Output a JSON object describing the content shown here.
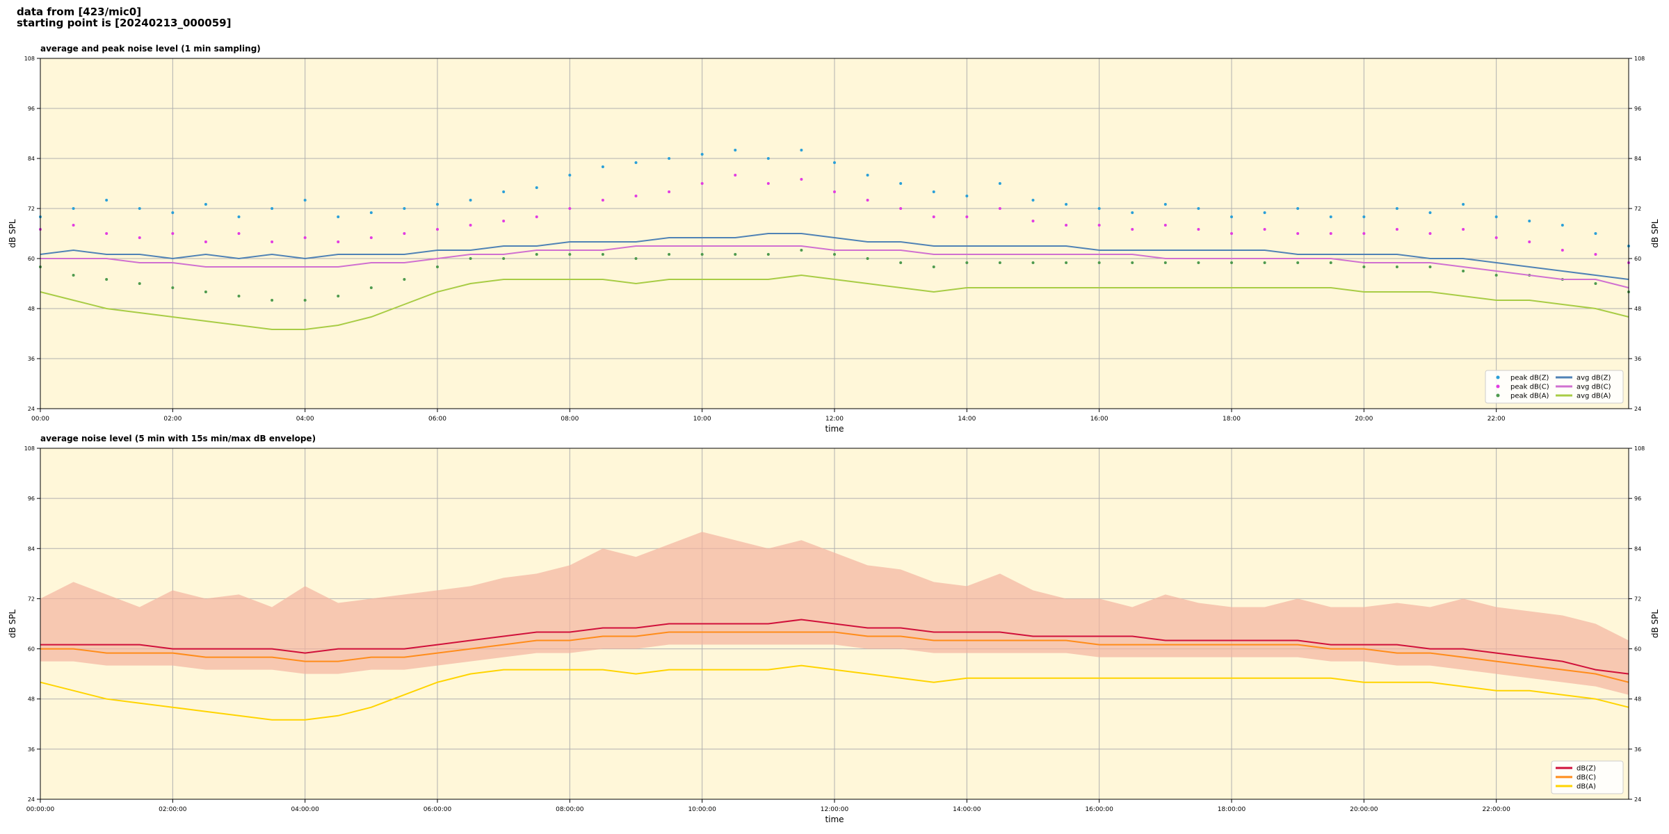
{
  "title": [
    "data from [423/mic0]",
    "starting point is [20240213_000059]"
  ],
  "chart_data": [
    {
      "type": "line",
      "title": "average and peak noise level (1 min sampling)",
      "xlabel": "time",
      "ylabel": "dB SPL",
      "background": "#fff7d9",
      "grid": true,
      "legend": "lower right",
      "legend_columns": 2,
      "xlim": [
        0,
        24
      ],
      "ylim": [
        24,
        108
      ],
      "xticks": [
        {
          "value": 0,
          "label": "00:00"
        },
        {
          "value": 2,
          "label": "02:00"
        },
        {
          "value": 4,
          "label": "04:00"
        },
        {
          "value": 6,
          "label": "06:00"
        },
        {
          "value": 8,
          "label": "08:00"
        },
        {
          "value": 10,
          "label": "10:00"
        },
        {
          "value": 12,
          "label": "12:00"
        },
        {
          "value": 14,
          "label": "14:00"
        },
        {
          "value": 16,
          "label": "16:00"
        },
        {
          "value": 18,
          "label": "18:00"
        },
        {
          "value": 20,
          "label": "20:00"
        },
        {
          "value": 22,
          "label": "22:00"
        }
      ],
      "yticks": [
        24,
        36,
        48,
        60,
        72,
        84,
        96,
        108
      ],
      "x": [
        0,
        0.5,
        1,
        1.5,
        2,
        2.5,
        3,
        3.5,
        4,
        4.5,
        5,
        5.5,
        6,
        6.5,
        7,
        7.5,
        8,
        8.5,
        9,
        9.5,
        10,
        10.5,
        11,
        11.5,
        12,
        12.5,
        13,
        13.5,
        14,
        14.5,
        15,
        15.5,
        16,
        16.5,
        17,
        17.5,
        18,
        18.5,
        19,
        19.5,
        20,
        20.5,
        21,
        21.5,
        22,
        22.5,
        23,
        23.5,
        24
      ],
      "series": [
        {
          "name": "peak dB(Z)",
          "kind": "scatter",
          "color": "#2a9fd8",
          "values": [
            70,
            72,
            74,
            72,
            71,
            73,
            70,
            72,
            74,
            70,
            71,
            72,
            73,
            74,
            76,
            77,
            80,
            82,
            83,
            84,
            85,
            86,
            84,
            86,
            83,
            80,
            78,
            76,
            75,
            78,
            74,
            73,
            72,
            71,
            73,
            72,
            70,
            71,
            72,
            70,
            70,
            72,
            71,
            73,
            70,
            69,
            68,
            66,
            63
          ]
        },
        {
          "name": "peak dB(C)",
          "kind": "scatter",
          "color": "#e23be2",
          "values": [
            67,
            68,
            66,
            65,
            66,
            64,
            66,
            64,
            65,
            64,
            65,
            66,
            67,
            68,
            69,
            70,
            72,
            74,
            75,
            76,
            78,
            80,
            78,
            79,
            76,
            74,
            72,
            70,
            70,
            72,
            69,
            68,
            68,
            67,
            68,
            67,
            66,
            67,
            66,
            66,
            66,
            67,
            66,
            67,
            65,
            64,
            62,
            61,
            59
          ]
        },
        {
          "name": "peak dB(A)",
          "kind": "scatter",
          "color": "#4e9a4e",
          "values": [
            58,
            56,
            55,
            54,
            53,
            52,
            51,
            50,
            50,
            51,
            53,
            55,
            58,
            60,
            60,
            61,
            61,
            61,
            60,
            61,
            61,
            61,
            61,
            62,
            61,
            60,
            59,
            58,
            59,
            59,
            59,
            59,
            59,
            59,
            59,
            59,
            59,
            59,
            59,
            59,
            58,
            58,
            58,
            57,
            56,
            56,
            55,
            54,
            52
          ]
        },
        {
          "name": "avg dB(Z)",
          "kind": "line",
          "color": "#4f82b5",
          "values": [
            61,
            62,
            61,
            61,
            60,
            61,
            60,
            61,
            60,
            61,
            61,
            61,
            62,
            62,
            63,
            63,
            64,
            64,
            64,
            65,
            65,
            65,
            66,
            66,
            65,
            64,
            64,
            63,
            63,
            63,
            63,
            63,
            62,
            62,
            62,
            62,
            62,
            62,
            61,
            61,
            61,
            61,
            60,
            60,
            59,
            58,
            57,
            56,
            55
          ]
        },
        {
          "name": "avg dB(C)",
          "kind": "line",
          "color": "#d070d0",
          "values": [
            60,
            60,
            60,
            59,
            59,
            58,
            58,
            58,
            58,
            58,
            59,
            59,
            60,
            61,
            61,
            62,
            62,
            62,
            63,
            63,
            63,
            63,
            63,
            63,
            62,
            62,
            62,
            61,
            61,
            61,
            61,
            61,
            61,
            61,
            60,
            60,
            60,
            60,
            60,
            60,
            59,
            59,
            59,
            58,
            57,
            56,
            55,
            55,
            53
          ]
        },
        {
          "name": "avg dB(A)",
          "kind": "line",
          "color": "#a8cc45",
          "values": [
            52,
            50,
            48,
            47,
            46,
            45,
            44,
            43,
            43,
            44,
            46,
            49,
            52,
            54,
            55,
            55,
            55,
            55,
            54,
            55,
            55,
            55,
            55,
            56,
            55,
            54,
            53,
            52,
            53,
            53,
            53,
            53,
            53,
            53,
            53,
            53,
            53,
            53,
            53,
            53,
            52,
            52,
            52,
            51,
            50,
            50,
            49,
            48,
            46
          ]
        }
      ]
    },
    {
      "type": "line",
      "title": "average noise level (5 min with 15s min/max dB envelope)",
      "xlabel": "time",
      "ylabel": "dB SPL",
      "background": "#fff7d9",
      "grid": true,
      "legend": "lower right",
      "legend_columns": 1,
      "xlim": [
        0,
        24
      ],
      "ylim": [
        24,
        108
      ],
      "xticks": [
        {
          "value": 0,
          "label": "00:00:00"
        },
        {
          "value": 2,
          "label": "02:00:00"
        },
        {
          "value": 4,
          "label": "04:00:00"
        },
        {
          "value": 6,
          "label": "06:00:00"
        },
        {
          "value": 8,
          "label": "08:00:00"
        },
        {
          "value": 10,
          "label": "10:00:00"
        },
        {
          "value": 12,
          "label": "12:00:00"
        },
        {
          "value": 14,
          "label": "14:00:00"
        },
        {
          "value": 16,
          "label": "16:00:00"
        },
        {
          "value": 18,
          "label": "18:00:00"
        },
        {
          "value": 20,
          "label": "20:00:00"
        },
        {
          "value": 22,
          "label": "22:00:00"
        }
      ],
      "yticks": [
        24,
        36,
        48,
        60,
        72,
        84,
        96,
        108
      ],
      "x": [
        0,
        0.5,
        1,
        1.5,
        2,
        2.5,
        3,
        3.5,
        4,
        4.5,
        5,
        5.5,
        6,
        6.5,
        7,
        7.5,
        8,
        8.5,
        9,
        9.5,
        10,
        10.5,
        11,
        11.5,
        12,
        12.5,
        13,
        13.5,
        14,
        14.5,
        15,
        15.5,
        16,
        16.5,
        17,
        17.5,
        18,
        18.5,
        19,
        19.5,
        20,
        20.5,
        21,
        21.5,
        22,
        22.5,
        23,
        23.5,
        24
      ],
      "envelope": {
        "color": "#f4b3a0",
        "min": [
          57,
          57,
          56,
          56,
          56,
          55,
          55,
          55,
          54,
          54,
          55,
          55,
          56,
          57,
          58,
          59,
          59,
          60,
          60,
          61,
          61,
          61,
          61,
          61,
          61,
          60,
          60,
          59,
          59,
          59,
          59,
          59,
          58,
          58,
          58,
          58,
          58,
          58,
          58,
          57,
          57,
          56,
          56,
          55,
          54,
          53,
          52,
          51,
          49
        ],
        "max": [
          72,
          76,
          73,
          70,
          74,
          72,
          73,
          70,
          75,
          71,
          72,
          73,
          74,
          75,
          77,
          78,
          80,
          84,
          82,
          85,
          88,
          86,
          84,
          86,
          83,
          80,
          79,
          76,
          75,
          78,
          74,
          72,
          72,
          70,
          73,
          71,
          70,
          70,
          72,
          70,
          70,
          71,
          70,
          72,
          70,
          69,
          68,
          66,
          62
        ]
      },
      "series": [
        {
          "name": "dB(Z)",
          "kind": "line",
          "color": "#d0103a",
          "values": [
            61,
            61,
            61,
            61,
            60,
            60,
            60,
            60,
            59,
            60,
            60,
            60,
            61,
            62,
            63,
            64,
            64,
            65,
            65,
            66,
            66,
            66,
            66,
            67,
            66,
            65,
            65,
            64,
            64,
            64,
            63,
            63,
            63,
            63,
            62,
            62,
            62,
            62,
            62,
            61,
            61,
            61,
            60,
            60,
            59,
            58,
            57,
            55,
            54
          ]
        },
        {
          "name": "dB(C)",
          "kind": "line",
          "color": "#ff8c1a",
          "values": [
            60,
            60,
            59,
            59,
            59,
            58,
            58,
            58,
            57,
            57,
            58,
            58,
            59,
            60,
            61,
            62,
            62,
            63,
            63,
            64,
            64,
            64,
            64,
            64,
            64,
            63,
            63,
            62,
            62,
            62,
            62,
            62,
            61,
            61,
            61,
            61,
            61,
            61,
            61,
            60,
            60,
            59,
            59,
            58,
            57,
            56,
            55,
            54,
            52
          ]
        },
        {
          "name": "dB(A)",
          "kind": "line",
          "color": "#ffd400",
          "values": [
            52,
            50,
            48,
            47,
            46,
            45,
            44,
            43,
            43,
            44,
            46,
            49,
            52,
            54,
            55,
            55,
            55,
            55,
            54,
            55,
            55,
            55,
            55,
            56,
            55,
            54,
            53,
            52,
            53,
            53,
            53,
            53,
            53,
            53,
            53,
            53,
            53,
            53,
            53,
            53,
            52,
            52,
            52,
            51,
            50,
            50,
            49,
            48,
            46
          ]
        }
      ]
    }
  ]
}
